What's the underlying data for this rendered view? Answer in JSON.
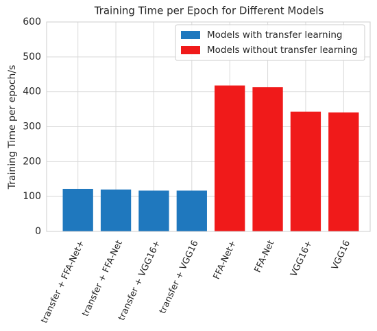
{
  "chart_data": {
    "type": "bar",
    "title": "Training Time per Epoch for Different Models",
    "y_label": "Training Time per epoch/s",
    "categories": [
      "transfer + FFA-Net+",
      "transfer + FFA-Net",
      "transfer + VGG16+",
      "transfer + VGG16",
      "FFA-Net+",
      "FFA-Net",
      "VGG16+",
      "VGG16"
    ],
    "series": [
      {
        "name": "Models with transfer learning",
        "color": "#1f78be",
        "values": [
          122,
          120,
          117,
          117,
          null,
          null,
          null,
          null
        ]
      },
      {
        "name": "Models without transfer learning",
        "color": "#f01a1a",
        "values": [
          null,
          null,
          null,
          null,
          418,
          413,
          343,
          341
        ]
      }
    ],
    "ylim": [
      0,
      600
    ],
    "yticks": [
      0,
      100,
      200,
      300,
      400,
      500,
      600
    ],
    "grid": true,
    "legend": "upper right"
  }
}
